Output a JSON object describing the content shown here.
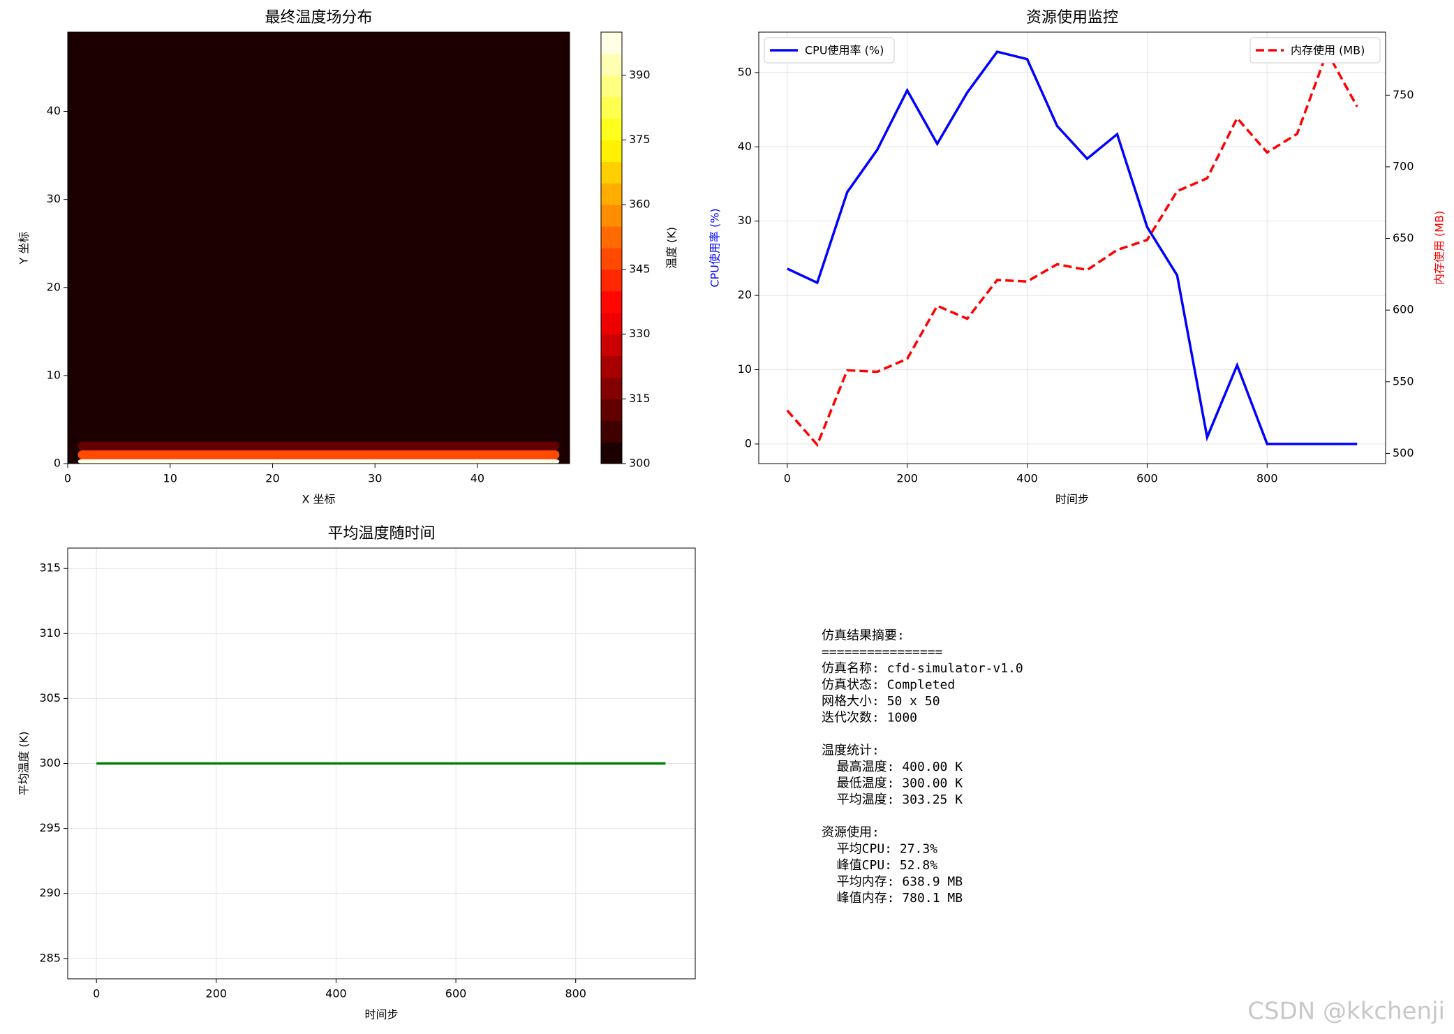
{
  "chart_data": [
    {
      "type": "heatmap",
      "title": "最终温度场分布",
      "xlabel": "X 坐标",
      "ylabel": "Y 坐标",
      "colorbar_label": "温度 (K)",
      "xlim": [
        0,
        49
      ],
      "ylim": [
        0,
        49
      ],
      "xticks": [
        0,
        10,
        20,
        30,
        40
      ],
      "yticks": [
        0,
        10,
        20,
        30,
        40
      ],
      "clim": [
        300,
        400
      ],
      "level_step": 5,
      "cticks": [
        300,
        315,
        330,
        345,
        360,
        375,
        390
      ],
      "background": 300,
      "hot_x": [
        1,
        48
      ],
      "rows": {
        "y": [
          0,
          1,
          2,
          3
        ],
        "values": [
          400,
          345,
          312,
          302
        ]
      }
    },
    {
      "type": "line",
      "title": "资源使用监控",
      "xlabel": "时间步",
      "ylabel": "CPU使用率 (%)",
      "y2label": "内存使用 (MB)",
      "ylabel_color": "#0000ff",
      "y2label_color": "#ff0000",
      "grid": true,
      "xlim": [
        -47.5,
        997.5
      ],
      "ylim": [
        -2.64,
        55.44
      ],
      "y2lim": [
        492.9,
        794.0
      ],
      "xticks": [
        0,
        200,
        400,
        600,
        800
      ],
      "yticks": [
        0,
        10,
        20,
        30,
        40,
        50
      ],
      "y2ticks": [
        500,
        550,
        600,
        650,
        700,
        750
      ],
      "x": [
        0,
        50,
        100,
        150,
        200,
        250,
        300,
        350,
        400,
        450,
        500,
        550,
        600,
        650,
        700,
        750,
        800,
        850,
        900,
        950
      ],
      "series": [
        {
          "name": "CPU使用率 (%)",
          "color": "#0000ff",
          "dash": false,
          "legend": "upper left",
          "values": [
            23.6,
            21.7,
            33.9,
            39.6,
            47.6,
            40.4,
            47.3,
            52.8,
            51.8,
            42.8,
            38.4,
            41.7,
            29.2,
            22.7,
            0.9,
            10.6,
            0,
            0,
            0,
            0
          ]
        },
        {
          "name": "内存使用 (MB)",
          "color": "#ff0000",
          "dash": true,
          "legend": "upper right",
          "axis": "y2",
          "values": [
            530,
            506,
            558,
            557,
            566,
            603,
            594,
            621,
            620,
            632,
            628,
            642,
            649,
            683,
            692,
            734,
            710,
            723,
            780.1,
            742
          ]
        }
      ]
    },
    {
      "type": "line",
      "title": "平均温度随时间",
      "xlabel": "时间步",
      "ylabel": "平均温度 (K)",
      "grid": true,
      "xlim": [
        -48,
        999.6
      ],
      "ylim": [
        283.43,
        316.57
      ],
      "xticks": [
        0,
        200,
        400,
        600,
        800
      ],
      "yticks": [
        285,
        290,
        295,
        300,
        305,
        310,
        315
      ],
      "x": [
        0,
        50,
        100,
        150,
        200,
        250,
        300,
        350,
        400,
        450,
        500,
        550,
        600,
        650,
        700,
        750,
        800,
        850,
        900,
        950
      ],
      "series": [
        {
          "color": "#008000",
          "dash": false,
          "values": [
            300,
            300,
            300,
            300,
            300,
            300,
            300,
            300,
            300,
            300,
            300,
            300,
            300,
            300,
            300,
            300,
            300,
            300,
            300,
            300
          ]
        }
      ]
    }
  ],
  "summary": {
    "sections": [
      {
        "lines": [
          "仿真结果摘要:",
          "================",
          "仿真名称: cfd-simulator-v1.0",
          "仿真状态: Completed",
          "网格大小: 50 x 50",
          "迭代次数: 1000"
        ]
      },
      {
        "lines": [
          "温度统计:",
          "  最高温度: 400.00 K",
          "  最低温度: 300.00 K",
          "  平均温度: 303.25 K"
        ]
      },
      {
        "lines": [
          "资源使用:",
          "  平均CPU: 27.3%",
          "  峰值CPU: 52.8%",
          "  平均内存: 638.9 MB",
          "  峰值内存: 780.1 MB"
        ]
      }
    ]
  },
  "watermark": "CSDN @kkchenji"
}
